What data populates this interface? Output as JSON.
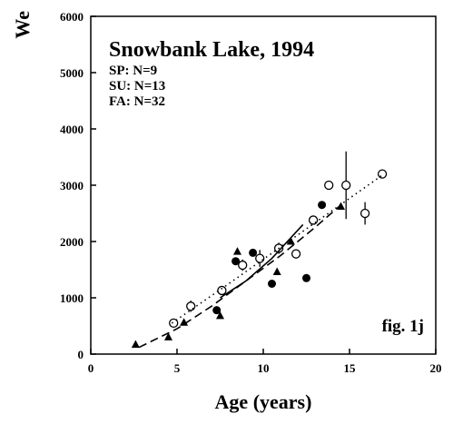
{
  "chart_data": {
    "type": "scatter",
    "title": "Snowbank Lake, 1994",
    "subtitle": [
      "SP: N=9",
      "SU: N=13",
      "FA: N=32"
    ],
    "annotation": "fig. 1j",
    "x_label": "Age (years)",
    "y_label": "We",
    "xlim": [
      0,
      20
    ],
    "xticks": [
      0,
      5,
      10,
      15,
      20
    ],
    "ylim": [
      0,
      6000
    ],
    "yticks": [
      0,
      1000,
      2000,
      3000,
      4000,
      5000,
      6000
    ],
    "series": [
      {
        "marker": "open-circle",
        "color": "#000",
        "x": [
          4.8,
          7.6,
          13.8,
          16.9
        ],
        "values": [
          550,
          1130,
          3000,
          3200
        ]
      },
      {
        "marker": "filled-circle",
        "color": "#000",
        "x": [
          7.3,
          8.4,
          9.4,
          10.5,
          12.5,
          13.4
        ],
        "values": [
          780,
          1650,
          1800,
          1250,
          1350,
          2650
        ]
      },
      {
        "marker": "triangle",
        "color": "#000",
        "x": [
          2.6,
          4.5,
          5.4,
          7.5,
          8.5,
          10.8,
          11.6,
          14.5
        ],
        "values": [
          170,
          300,
          560,
          680,
          1820,
          1460,
          2000,
          2620
        ]
      },
      {
        "marker": "error-circle",
        "color": "#000",
        "x": [
          5.8,
          8.8,
          9.8,
          10.9,
          11.9,
          12.9,
          14.8,
          15.9
        ],
        "values": [
          850,
          1580,
          1700,
          1880,
          1780,
          2380,
          3000,
          2500
        ],
        "errors": [
          100,
          100,
          150,
          100,
          80,
          80,
          600,
          200
        ]
      },
      {
        "marker": "dotted-line",
        "color": "#000",
        "x": [
          4.7,
          8,
          11,
          14,
          17
        ],
        "values": [
          550,
          1250,
          1900,
          2550,
          3200
        ]
      },
      {
        "marker": "dashed-line",
        "color": "#000",
        "x": [
          2.8,
          5,
          7,
          9,
          11,
          13,
          14.5
        ],
        "values": [
          120,
          450,
          850,
          1300,
          1750,
          2250,
          2650
        ]
      },
      {
        "marker": "solid-line",
        "color": "#000",
        "x": [
          7.5,
          9,
          10.5,
          12.3
        ],
        "values": [
          1000,
          1300,
          1700,
          2300
        ]
      }
    ]
  }
}
